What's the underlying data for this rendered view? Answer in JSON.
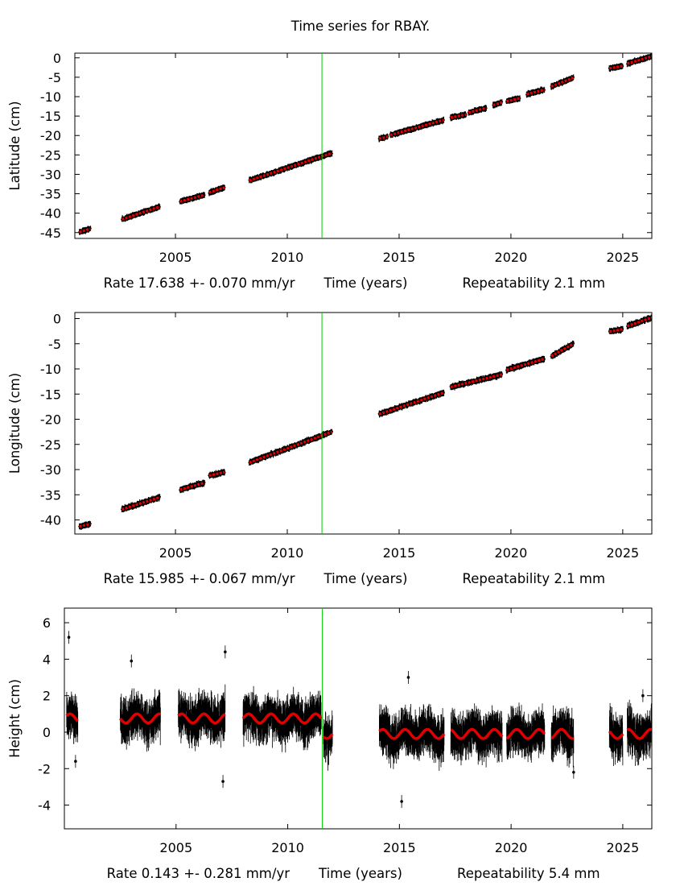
{
  "title": "Time series for RBAY.",
  "chart_data": [
    {
      "type": "scatter",
      "name": "latitude",
      "ylabel": "Latitude (cm)",
      "xlabel": "Time (years)",
      "rate": "Rate 17.638 +- 0.070 mm/yr",
      "repeatability": "Repeatability 2.1 mm",
      "xlim": [
        2000.5,
        2026.3
      ],
      "ylim": [
        -46.5,
        1.2
      ],
      "xticks": [
        2005,
        2010,
        2015,
        2020,
        2025
      ],
      "yticks": [
        0,
        -5,
        -10,
        -15,
        -20,
        -25,
        -30,
        -35,
        -40,
        -45
      ],
      "event_line_x": 2011.55,
      "noise_cm": 0.35,
      "segments": [
        {
          "x": [
            2000.7,
            2001.2
          ],
          "y": [
            -44.9,
            -44.0
          ]
        },
        {
          "x": [
            2002.6,
            2004.3
          ],
          "y": [
            -41.6,
            -38.3
          ]
        },
        {
          "x": [
            2005.2,
            2006.3
          ],
          "y": [
            -37.0,
            -35.3
          ]
        },
        {
          "x": [
            2006.5,
            2007.2
          ],
          "y": [
            -34.7,
            -33.4
          ]
        },
        {
          "x": [
            2008.3,
            2012.0
          ],
          "y": [
            -31.6,
            -24.5
          ]
        },
        {
          "x": [
            2014.1,
            2014.5
          ],
          "y": [
            -20.8,
            -20.3
          ]
        },
        {
          "x": [
            2014.6,
            2017.0
          ],
          "y": [
            -19.9,
            -16.0
          ]
        },
        {
          "x": [
            2017.3,
            2018.0
          ],
          "y": [
            -15.4,
            -14.6
          ]
        },
        {
          "x": [
            2018.1,
            2018.9
          ],
          "y": [
            -14.1,
            -12.9
          ]
        },
        {
          "x": [
            2019.2,
            2019.6
          ],
          "y": [
            -12.2,
            -11.5
          ]
        },
        {
          "x": [
            2019.8,
            2020.4
          ],
          "y": [
            -11.2,
            -10.4
          ]
        },
        {
          "x": [
            2020.7,
            2021.5
          ],
          "y": [
            -9.4,
            -8.2
          ]
        },
        {
          "x": [
            2021.8,
            2022.8
          ],
          "y": [
            -7.4,
            -5.1
          ]
        },
        {
          "x": [
            2024.4,
            2025.0
          ],
          "y": [
            -2.7,
            -2.1
          ]
        },
        {
          "x": [
            2025.2,
            2026.3
          ],
          "y": [
            -1.5,
            0.4
          ]
        }
      ]
    },
    {
      "type": "scatter",
      "name": "longitude",
      "ylabel": "Longitude (cm)",
      "xlabel": "Time (years)",
      "rate": "Rate 15.985 +- 0.067 mm/yr",
      "repeatability": "Repeatability 2.1 mm",
      "xlim": [
        2000.5,
        2026.3
      ],
      "ylim": [
        -42.8,
        1.2
      ],
      "xticks": [
        2005,
        2010,
        2015,
        2020,
        2025
      ],
      "yticks": [
        0,
        -5,
        -10,
        -15,
        -20,
        -25,
        -30,
        -35,
        -40
      ],
      "event_line_x": 2011.55,
      "noise_cm": 0.35,
      "segments": [
        {
          "x": [
            2000.7,
            2001.2
          ],
          "y": [
            -41.3,
            -40.8
          ]
        },
        {
          "x": [
            2002.6,
            2004.3
          ],
          "y": [
            -37.9,
            -35.5
          ]
        },
        {
          "x": [
            2005.2,
            2006.3
          ],
          "y": [
            -34.0,
            -32.6
          ]
        },
        {
          "x": [
            2006.5,
            2007.2
          ],
          "y": [
            -31.2,
            -30.5
          ]
        },
        {
          "x": [
            2008.3,
            2012.0
          ],
          "y": [
            -28.6,
            -22.5
          ]
        },
        {
          "x": [
            2014.1,
            2017.0
          ],
          "y": [
            -19.0,
            -14.7
          ]
        },
        {
          "x": [
            2017.3,
            2019.6
          ],
          "y": [
            -13.6,
            -11.1
          ]
        },
        {
          "x": [
            2019.8,
            2021.5
          ],
          "y": [
            -10.2,
            -8.0
          ]
        },
        {
          "x": [
            2021.8,
            2022.8
          ],
          "y": [
            -7.5,
            -5.0
          ]
        },
        {
          "x": [
            2024.4,
            2025.0
          ],
          "y": [
            -2.6,
            -2.1
          ]
        },
        {
          "x": [
            2025.2,
            2026.3
          ],
          "y": [
            -1.5,
            0.2
          ]
        }
      ]
    },
    {
      "type": "scatter",
      "name": "height",
      "ylabel": "Height (cm)",
      "xlabel": "Time (years)",
      "rate": "Rate 0.143 +- 0.281 mm/yr",
      "repeatability": "Repeatability 5.4 mm",
      "xlim": [
        2000.0,
        2026.3
      ],
      "ylim": [
        -5.3,
        6.8
      ],
      "xticks": [
        2005,
        2010,
        2015,
        2020,
        2025
      ],
      "yticks": [
        6,
        4,
        2,
        0,
        -2,
        -4
      ],
      "event_line_x": 2011.55,
      "noise_cm": 0.55,
      "model": [
        {
          "x": [
            2000.1,
            2000.6
          ],
          "mean": 0.75,
          "amp": 0.25
        },
        {
          "x": [
            2002.5,
            2004.3
          ],
          "mean": 0.75,
          "amp": 0.25
        },
        {
          "x": [
            2005.1,
            2007.2
          ],
          "mean": 0.75,
          "amp": 0.25
        },
        {
          "x": [
            2008.0,
            2011.5
          ],
          "mean": 0.75,
          "amp": 0.25
        },
        {
          "x": [
            2011.6,
            2012.0
          ],
          "mean": -0.1,
          "amp": 0.25
        },
        {
          "x": [
            2014.1,
            2017.0
          ],
          "mean": -0.1,
          "amp": 0.25
        },
        {
          "x": [
            2017.3,
            2019.6
          ],
          "mean": -0.1,
          "amp": 0.25
        },
        {
          "x": [
            2019.8,
            2021.5
          ],
          "mean": -0.1,
          "amp": 0.25
        },
        {
          "x": [
            2021.8,
            2022.8
          ],
          "mean": -0.1,
          "amp": 0.25
        },
        {
          "x": [
            2024.4,
            2025.0
          ],
          "mean": -0.1,
          "amp": 0.25
        },
        {
          "x": [
            2025.2,
            2026.3
          ],
          "mean": -0.1,
          "amp": 0.25
        }
      ],
      "outliers": [
        {
          "x": 2000.2,
          "y": 5.2
        },
        {
          "x": 2000.5,
          "y": -1.6
        },
        {
          "x": 2003.0,
          "y": 3.9
        },
        {
          "x": 2007.1,
          "y": -2.7
        },
        {
          "x": 2007.2,
          "y": 4.4
        },
        {
          "x": 2015.4,
          "y": 3.0
        },
        {
          "x": 2015.1,
          "y": -3.8
        },
        {
          "x": 2022.8,
          "y": -2.2
        },
        {
          "x": 2025.9,
          "y": 2.0
        }
      ]
    }
  ]
}
